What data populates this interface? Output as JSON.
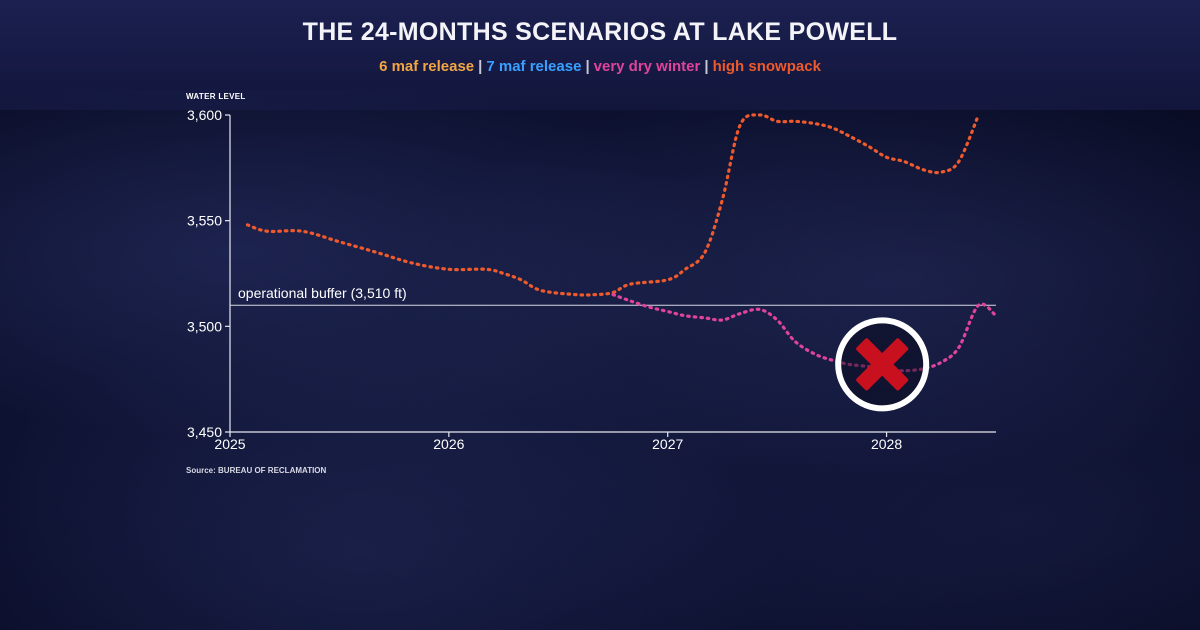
{
  "chart_data": {
    "type": "line",
    "title": "THE 24-MONTHS SCENARIOS AT LAKE POWELL",
    "legend": [
      {
        "label": "6 maf release",
        "color": "#f2a541"
      },
      {
        "label": "7 maf release",
        "color": "#3aa0ff"
      },
      {
        "label": "very dry winter",
        "color": "#e0449a"
      },
      {
        "label": "high snowpack",
        "color": "#ee5a2c"
      }
    ],
    "legend_placement": "top-center",
    "ylabel": "WATER LEVEL",
    "xlabel": "",
    "xlim": [
      2025.0,
      2028.5
    ],
    "ylim": [
      3450,
      3600
    ],
    "x_ticks": [
      2025,
      2026,
      2027,
      2028
    ],
    "x_tick_labels": [
      "2025",
      "2026",
      "2027",
      "2028"
    ],
    "y_ticks": [
      3450,
      3500,
      3550,
      3600
    ],
    "y_tick_labels": [
      "3,450",
      "3,500",
      "3,550",
      "3,600"
    ],
    "grid": false,
    "reference_line": {
      "value": 3510,
      "label": "operational buffer (3,510 ft)"
    },
    "series": [
      {
        "name": "high snowpack",
        "color": "#ee5a2c",
        "style": "dotted",
        "x": [
          2025.08,
          2025.17,
          2025.33,
          2025.5,
          2025.67,
          2025.83,
          2026.0,
          2026.17,
          2026.25,
          2026.33,
          2026.42,
          2026.58,
          2026.67,
          2026.75,
          2026.83,
          2027.0,
          2027.08,
          2027.17,
          2027.25,
          2027.33,
          2027.42,
          2027.5,
          2027.58,
          2027.67,
          2027.75,
          2027.83,
          2027.92,
          2028.0,
          2028.08,
          2028.17,
          2028.25,
          2028.33,
          2028.42
        ],
        "values": [
          3548,
          3545,
          3545,
          3540,
          3535,
          3530,
          3527,
          3527,
          3525,
          3522,
          3517,
          3515,
          3515,
          3516,
          3520,
          3522,
          3527,
          3535,
          3560,
          3595,
          3600,
          3597,
          3597,
          3596,
          3594,
          3590,
          3585,
          3580,
          3578,
          3574,
          3573,
          3578,
          3600
        ]
      },
      {
        "name": "very dry winter",
        "color": "#e0449a",
        "style": "dotted",
        "x": [
          2026.75,
          2026.83,
          2026.92,
          2027.0,
          2027.08,
          2027.17,
          2027.25,
          2027.33,
          2027.42,
          2027.5,
          2027.58,
          2027.67,
          2027.75,
          2027.83,
          2027.92,
          2028.0,
          2028.08,
          2028.17,
          2028.25,
          2028.33,
          2028.42,
          2028.5
        ],
        "values": [
          3515,
          3512,
          3509,
          3507,
          3505,
          3504,
          3503,
          3506,
          3508,
          3503,
          3493,
          3487,
          3484,
          3482,
          3481,
          3480,
          3479,
          3480,
          3483,
          3490,
          3510,
          3505
        ]
      }
    ],
    "annotation": {
      "type": "x-mark-icon",
      "color": "#c8101e",
      "ring_color": "#ffffff",
      "x": 2027.98,
      "y": 3482
    }
  },
  "source": "Source: BUREAU OF RECLAMATION"
}
